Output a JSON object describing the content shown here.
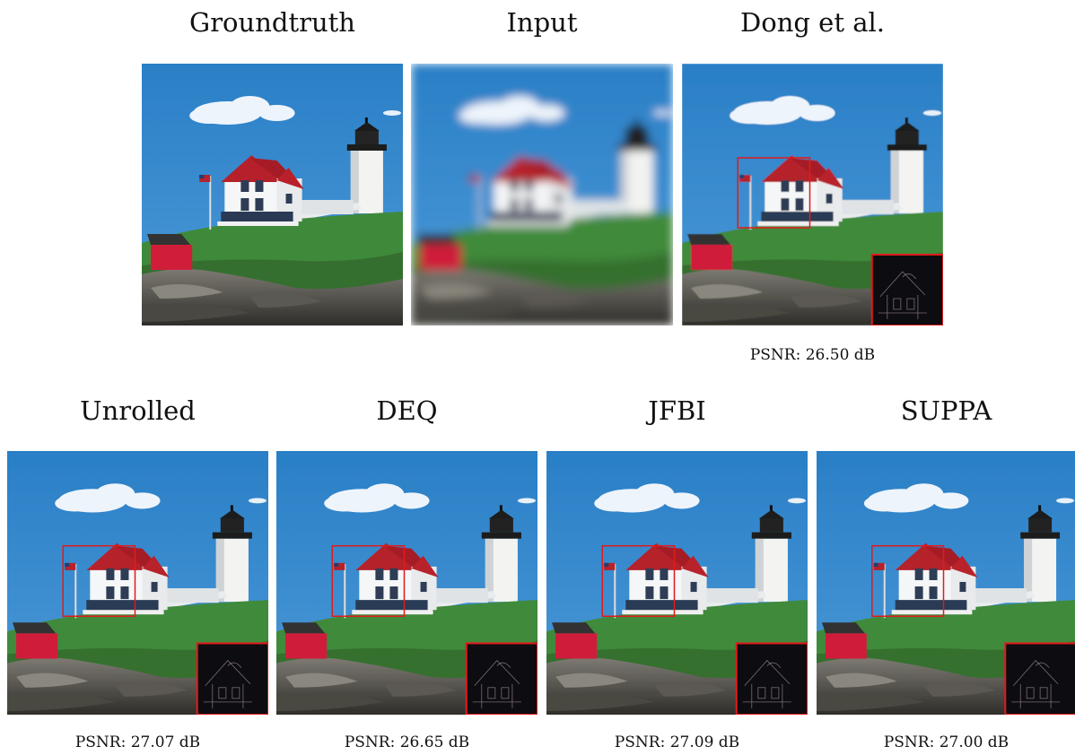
{
  "figure": {
    "panels": [
      {
        "id": "groundtruth",
        "title": "Groundtruth",
        "psnr": "",
        "blur": 0,
        "zoom": false
      },
      {
        "id": "input",
        "title": "Input",
        "psnr": "",
        "blur": 5,
        "zoom": false
      },
      {
        "id": "dong",
        "title": "Dong et al.",
        "psnr": "PSNR: 26.50 dB",
        "blur": 0.4,
        "zoom": true
      },
      {
        "id": "unrolled",
        "title": "Unrolled",
        "psnr": "PSNR: 27.07 dB",
        "blur": 0.3,
        "zoom": true
      },
      {
        "id": "deq",
        "title": "DEQ",
        "psnr": "PSNR: 26.65 dB",
        "blur": 0.3,
        "zoom": true
      },
      {
        "id": "jfbi",
        "title": "JFBI",
        "psnr": "PSNR: 27.09 dB",
        "blur": 0.3,
        "zoom": true
      },
      {
        "id": "suppa",
        "title": "SUPPA",
        "psnr": "PSNR: 27.00 dB",
        "blur": 0.3,
        "zoom": true
      }
    ]
  },
  "colors": {
    "sky_top": "#2a7fc6",
    "sky_bottom": "#4c9ad8",
    "grass": "#3f8a3a",
    "rock": "#6b6a66",
    "roof": "#b5202a",
    "shed": "#d01e3a",
    "highlight_box": "#e01b1b"
  }
}
